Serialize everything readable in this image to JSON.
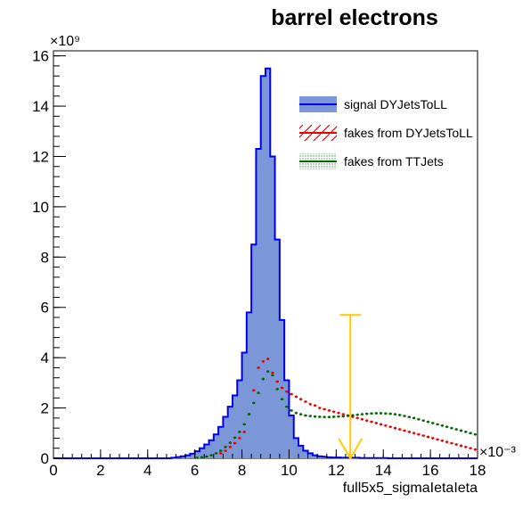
{
  "chart_data": {
    "type": "histogram",
    "title": "barrel electrons",
    "xlabel": "full5x5_sigmaIetaIeta",
    "ylabel": "",
    "x_exponent": "×10⁻³",
    "y_exponent": "×10⁹",
    "xlim": [
      0,
      18
    ],
    "ylim": [
      0,
      16.2
    ],
    "x_ticks": [
      0,
      2,
      4,
      6,
      8,
      10,
      12,
      14,
      16,
      18
    ],
    "y_ticks": [
      0,
      2,
      4,
      6,
      8,
      10,
      12,
      14,
      16
    ],
    "grid": false,
    "legend_position": "top-right",
    "cut_marker": {
      "x": 12.6,
      "y_top": 5.7,
      "color": "#ffcc00"
    },
    "series": [
      {
        "name": "signal DYJetsToLL",
        "style": "filled-step",
        "fill_color": "#7b97d8",
        "line_color": "#0000ee",
        "x": [
          5.0,
          5.2,
          5.4,
          5.6,
          5.8,
          6.0,
          6.2,
          6.4,
          6.6,
          6.8,
          7.0,
          7.2,
          7.4,
          7.6,
          7.8,
          8.0,
          8.2,
          8.4,
          8.6,
          8.8,
          9.0,
          9.2,
          9.4,
          9.6,
          9.8,
          10.0,
          10.2,
          10.4,
          10.6,
          10.8,
          11.0,
          11.2,
          11.4,
          11.6,
          11.8,
          12.0,
          12.2,
          12.4,
          12.6,
          12.8,
          13.0,
          13.2,
          13.4,
          13.6,
          13.8,
          14.0
        ],
        "values": [
          0.02,
          0.05,
          0.08,
          0.12,
          0.18,
          0.28,
          0.4,
          0.55,
          0.72,
          0.95,
          1.25,
          1.65,
          2.05,
          2.5,
          3.1,
          4.2,
          5.8,
          8.5,
          12.3,
          15.2,
          15.5,
          12.0,
          8.7,
          5.5,
          3.1,
          1.7,
          0.8,
          0.5,
          0.3,
          0.2,
          0.12,
          0.08,
          0.06,
          0.04,
          0.03,
          0.03,
          0.02,
          0.02,
          0.02,
          0.02,
          0.01,
          0.01,
          0.01,
          0.01,
          0.01,
          0.01
        ]
      },
      {
        "name": "fakes from DYJetsToLL",
        "style": "markers",
        "color": "#ee0000",
        "x": [
          7.0,
          7.2,
          7.4,
          7.6,
          7.8,
          8.0,
          8.2,
          8.4,
          8.6,
          8.8,
          9.0,
          9.2,
          9.4,
          9.6,
          9.8,
          10.0,
          10.2,
          10.4,
          10.6,
          10.8,
          11.0,
          11.2,
          11.4,
          11.6,
          11.8,
          12.0,
          12.2,
          12.4,
          12.6,
          12.8,
          13.0,
          13.2,
          13.4,
          13.6,
          13.8,
          14.0,
          14.2,
          14.4,
          14.6,
          14.8,
          15.0,
          15.2,
          15.4,
          15.6,
          15.8,
          16.0,
          16.2,
          16.4,
          16.6,
          16.8,
          17.0,
          17.2,
          17.4,
          17.6,
          17.8
        ],
        "values": [
          0.2,
          0.3,
          0.45,
          0.6,
          0.8,
          1.05,
          1.75,
          2.7,
          3.6,
          3.85,
          3.95,
          3.4,
          3.05,
          2.8,
          2.65,
          2.55,
          2.45,
          2.35,
          2.25,
          2.15,
          2.1,
          2.0,
          1.95,
          1.9,
          1.85,
          1.8,
          1.75,
          1.7,
          1.65,
          1.6,
          1.55,
          1.5,
          1.45,
          1.4,
          1.35,
          1.3,
          1.25,
          1.2,
          1.15,
          1.1,
          1.05,
          1.0,
          0.95,
          0.9,
          0.85,
          0.8,
          0.75,
          0.7,
          0.65,
          0.6,
          0.55,
          0.5,
          0.45,
          0.4,
          0.35
        ]
      },
      {
        "name": "fakes from TTJets",
        "style": "markers",
        "color": "#006600",
        "x": [
          6.0,
          6.2,
          6.4,
          6.6,
          6.8,
          7.0,
          7.2,
          7.4,
          7.6,
          7.8,
          8.0,
          8.2,
          8.4,
          8.6,
          8.8,
          9.0,
          9.2,
          9.4,
          9.6,
          9.8,
          10.0,
          10.2,
          10.4,
          10.6,
          10.8,
          11.0,
          11.2,
          11.4,
          11.6,
          11.8,
          12.0,
          12.2,
          12.4,
          12.6,
          12.8,
          13.0,
          13.2,
          13.4,
          13.6,
          13.8,
          14.0,
          14.2,
          14.4,
          14.6,
          14.8,
          15.0,
          15.2,
          15.4,
          15.6,
          15.8,
          16.0,
          16.2,
          16.4,
          16.6,
          16.8,
          17.0,
          17.2,
          17.4,
          17.6,
          17.8
        ],
        "values": [
          0.02,
          0.04,
          0.07,
          0.12,
          0.2,
          0.3,
          0.45,
          0.62,
          0.82,
          1.05,
          1.35,
          1.75,
          2.2,
          2.6,
          3.15,
          3.45,
          3.3,
          2.75,
          2.35,
          2.05,
          1.9,
          1.8,
          1.75,
          1.7,
          1.68,
          1.66,
          1.65,
          1.64,
          1.64,
          1.65,
          1.66,
          1.67,
          1.69,
          1.71,
          1.73,
          1.75,
          1.77,
          1.78,
          1.79,
          1.79,
          1.78,
          1.77,
          1.75,
          1.72,
          1.68,
          1.64,
          1.6,
          1.55,
          1.5,
          1.45,
          1.4,
          1.35,
          1.3,
          1.25,
          1.2,
          1.15,
          1.1,
          1.05,
          1.0,
          0.95
        ]
      }
    ]
  }
}
